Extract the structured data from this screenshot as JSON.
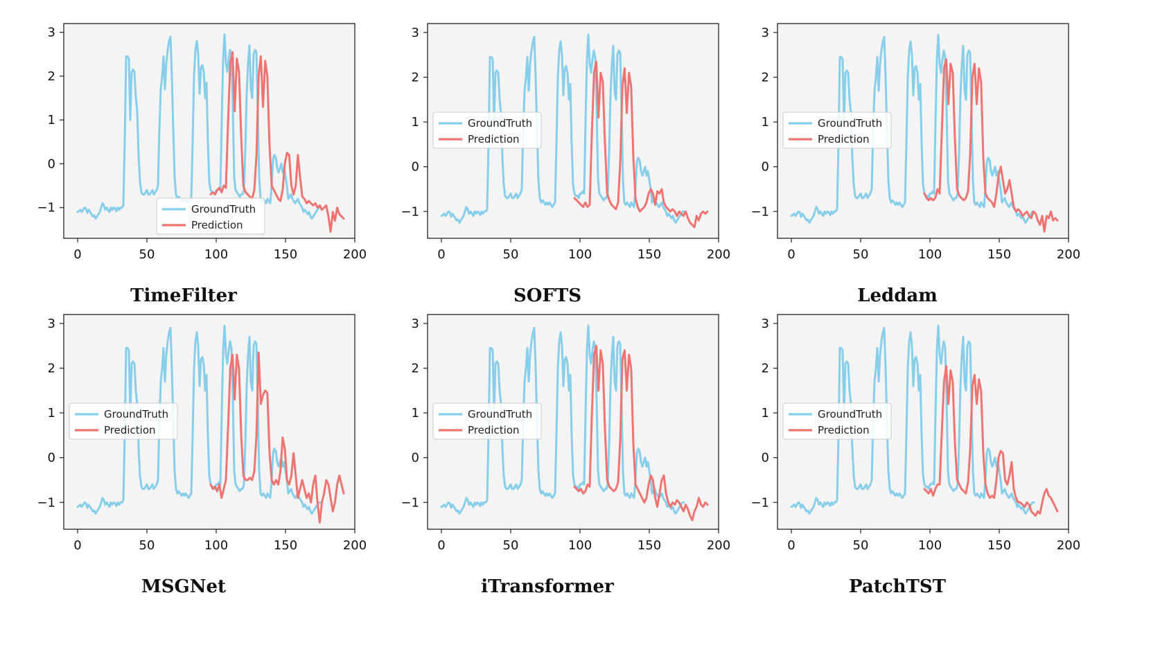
{
  "colors": {
    "ground_truth": "#87ceeb",
    "prediction": "#ee7472",
    "plot_bg": "#f4f4f4"
  },
  "chart_data": [
    {
      "type": "line",
      "title": "TimeFilter",
      "legend_position": "lower-right",
      "xlim": [
        -10,
        200
      ],
      "ylim": [
        -1.7,
        3.2
      ],
      "x_ticks": [
        0,
        50,
        100,
        150,
        200
      ],
      "y_ticks": [
        -1,
        0,
        1,
        2,
        3
      ],
      "series": [
        {
          "name": "GroundTruth",
          "role": "truth"
        },
        {
          "name": "Prediction",
          "role": "pred",
          "start": 96,
          "values": [
            -0.7,
            -0.65,
            -0.7,
            -0.6,
            -0.55,
            -0.65,
            -0.5,
            -0.55,
            1.0,
            2.3,
            2.55,
            1.2,
            2.4,
            2.1,
            0.6,
            -0.5,
            -0.65,
            -0.7,
            -0.75,
            -0.8,
            -0.6,
            0.2,
            2.0,
            2.45,
            1.3,
            2.35,
            2.0,
            0.4,
            -0.5,
            -0.6,
            -0.7,
            -0.8,
            -0.85,
            -0.6,
            0.0,
            0.25,
            0.2,
            -0.5,
            -0.7,
            -0.5,
            0.2,
            -0.3,
            -0.75,
            -0.8,
            -0.9,
            -0.85,
            -0.9,
            -0.95,
            -0.9,
            -1.0,
            -0.95,
            -1.05,
            -1.0,
            -0.95,
            -1.2,
            -1.55,
            -1.1,
            -1.3,
            -1.0,
            -1.15,
            -1.2,
            -1.25
          ]
        }
      ]
    },
    {
      "type": "line",
      "title": "SOFTS",
      "legend_position": "center-left",
      "xlim": [
        -10,
        200
      ],
      "ylim": [
        -1.6,
        3.2
      ],
      "x_ticks": [
        0,
        50,
        100,
        150,
        200
      ],
      "y_ticks": [
        -1,
        0,
        1,
        2,
        3
      ],
      "series": [
        {
          "name": "GroundTruth",
          "role": "truth"
        },
        {
          "name": "Prediction",
          "role": "pred",
          "start": 96,
          "values": [
            -0.7,
            -0.75,
            -0.8,
            -0.85,
            -0.9,
            -0.8,
            -0.9,
            -0.85,
            0.8,
            2.1,
            2.35,
            1.1,
            2.1,
            1.9,
            0.5,
            -0.6,
            -0.75,
            -0.85,
            -0.9,
            -0.95,
            -0.8,
            0.1,
            1.8,
            2.2,
            1.2,
            2.1,
            1.8,
            0.2,
            -0.7,
            -0.9,
            -1.0,
            -0.95,
            -0.9,
            -0.8,
            -0.6,
            -0.5,
            -0.6,
            -0.85,
            -0.55,
            -0.6,
            -0.5,
            -0.8,
            -0.9,
            -0.95,
            -1.0,
            -0.95,
            -1.0,
            -1.1,
            -1.0,
            -1.05,
            -1.1,
            -1.0,
            -1.15,
            -1.25,
            -1.3,
            -1.35,
            -1.1,
            -1.2,
            -1.05,
            -1.0,
            -1.05,
            -1.0
          ]
        }
      ]
    },
    {
      "type": "line",
      "title": "Leddam",
      "legend_position": "center-left",
      "xlim": [
        -10,
        200
      ],
      "ylim": [
        -1.6,
        3.2
      ],
      "x_ticks": [
        0,
        50,
        100,
        150,
        200
      ],
      "y_ticks": [
        -1,
        0,
        1,
        2,
        3
      ],
      "series": [
        {
          "name": "GroundTruth",
          "role": "truth"
        },
        {
          "name": "Prediction",
          "role": "pred",
          "start": 96,
          "values": [
            -0.6,
            -0.7,
            -0.75,
            -0.7,
            -0.75,
            -0.7,
            -0.5,
            -0.6,
            0.8,
            2.2,
            2.4,
            1.4,
            2.3,
            2.1,
            0.6,
            -0.5,
            -0.65,
            -0.7,
            -0.75,
            -0.7,
            -0.55,
            0.3,
            2.0,
            2.3,
            1.4,
            2.2,
            1.9,
            0.2,
            -0.6,
            -0.7,
            -0.75,
            -0.8,
            -0.9,
            -0.6,
            -0.2,
            0.0,
            -0.3,
            -0.6,
            -0.5,
            -0.3,
            -0.6,
            -0.9,
            -1.0,
            -0.95,
            -1.0,
            -1.1,
            -1.05,
            -1.0,
            -1.1,
            -1.15,
            -1.0,
            -1.05,
            -1.2,
            -1.3,
            -1.1,
            -1.45,
            -1.1,
            -1.15,
            -1.0,
            -1.2,
            -1.15,
            -1.2
          ]
        }
      ]
    },
    {
      "type": "line",
      "title": "MSGNet",
      "legend_position": "center-left",
      "xlim": [
        -10,
        200
      ],
      "ylim": [
        -1.6,
        3.2
      ],
      "x_ticks": [
        0,
        50,
        100,
        150,
        200
      ],
      "y_ticks": [
        -1,
        0,
        1,
        2,
        3
      ],
      "series": [
        {
          "name": "GroundTruth",
          "role": "truth"
        },
        {
          "name": "Prediction",
          "role": "pred",
          "start": 96,
          "values": [
            -0.6,
            -0.7,
            -0.65,
            -0.75,
            -0.6,
            -0.9,
            -0.7,
            -0.5,
            0.7,
            2.0,
            2.3,
            1.3,
            2.3,
            2.0,
            0.5,
            -0.4,
            -0.5,
            -0.5,
            -0.45,
            -0.5,
            -0.3,
            0.5,
            2.35,
            1.2,
            1.4,
            1.5,
            1.45,
            0.1,
            -0.5,
            -0.6,
            -0.5,
            -0.6,
            -0.3,
            0.45,
            0.2,
            -0.5,
            -0.6,
            -0.4,
            0.1,
            -0.4,
            -0.9,
            -0.7,
            -0.5,
            -0.7,
            -0.9,
            -0.8,
            -1.0,
            -0.6,
            -0.4,
            -1.0,
            -1.45,
            -1.0,
            -0.8,
            -0.5,
            -0.6,
            -0.9,
            -1.2,
            -1.0,
            -0.6,
            -0.4,
            -0.6,
            -0.8
          ]
        }
      ]
    },
    {
      "type": "line",
      "title": "iTransformer",
      "legend_position": "center-left",
      "xlim": [
        -10,
        200
      ],
      "ylim": [
        -1.6,
        3.2
      ],
      "x_ticks": [
        0,
        50,
        100,
        150,
        200
      ],
      "y_ticks": [
        -1,
        0,
        1,
        2,
        3
      ],
      "series": [
        {
          "name": "GroundTruth",
          "role": "truth"
        },
        {
          "name": "Prediction",
          "role": "pred",
          "start": 96,
          "values": [
            -0.65,
            -0.7,
            -0.75,
            -0.7,
            -0.8,
            -0.75,
            -0.6,
            -0.65,
            1.0,
            2.3,
            2.5,
            1.5,
            2.4,
            2.1,
            0.6,
            -0.5,
            -0.65,
            -0.7,
            -0.75,
            -0.7,
            -0.55,
            0.4,
            2.2,
            2.4,
            1.5,
            2.3,
            2.0,
            0.3,
            -0.6,
            -0.7,
            -0.8,
            -0.9,
            -1.0,
            -0.9,
            -0.6,
            -0.4,
            -0.5,
            -0.9,
            -1.1,
            -0.8,
            -0.5,
            -0.4,
            -0.8,
            -1.0,
            -1.1,
            -1.0,
            -1.05,
            -0.95,
            -1.0,
            -1.1,
            -1.2,
            -1.05,
            -1.15,
            -1.3,
            -1.4,
            -1.2,
            -1.1,
            -0.9,
            -1.05,
            -1.1,
            -1.0,
            -1.05
          ]
        }
      ]
    },
    {
      "type": "line",
      "title": "PatchTST",
      "legend_position": "center-left",
      "xlim": [
        -10,
        200
      ],
      "ylim": [
        -1.6,
        3.2
      ],
      "x_ticks": [
        0,
        50,
        100,
        150,
        200
      ],
      "y_ticks": [
        -1,
        0,
        1,
        2,
        3
      ],
      "series": [
        {
          "name": "GroundTruth",
          "role": "truth"
        },
        {
          "name": "Prediction",
          "role": "pred",
          "start": 96,
          "values": [
            -0.7,
            -0.75,
            -0.8,
            -0.7,
            -0.85,
            -0.7,
            -0.6,
            -0.6,
            0.6,
            1.7,
            2.05,
            1.2,
            1.95,
            1.7,
            0.3,
            -0.5,
            -0.6,
            -0.7,
            -0.75,
            -0.8,
            -0.55,
            0.2,
            1.6,
            1.85,
            1.2,
            1.75,
            1.5,
            0.1,
            -0.6,
            -0.8,
            -0.9,
            -0.85,
            -0.9,
            -0.5,
            0.0,
            0.15,
            0.1,
            -0.5,
            -0.6,
            -0.4,
            -0.1,
            -0.7,
            -0.9,
            -1.0,
            -1.0,
            -1.05,
            -1.1,
            -1.0,
            -1.05,
            -1.2,
            -1.25,
            -1.3,
            -1.2,
            -1.25,
            -1.0,
            -0.8,
            -0.7,
            -0.85,
            -0.9,
            -1.0,
            -1.1,
            -1.2
          ]
        }
      ]
    }
  ],
  "ground_truth_values": [
    -1.1,
    -1.08,
    -1.05,
    -1.1,
    -1.05,
    -1.0,
    -1.02,
    -1.12,
    -1.05,
    -1.1,
    -1.15,
    -1.2,
    -1.18,
    -1.25,
    -1.2,
    -1.15,
    -1.1,
    -1.0,
    -0.9,
    -0.95,
    -1.05,
    -1.0,
    -1.05,
    -1.1,
    -1.0,
    -1.05,
    -1.0,
    -1.02,
    -1.08,
    -1.0,
    -1.05,
    -1.0,
    -1.0,
    -0.95,
    0.5,
    2.45,
    2.45,
    2.4,
    1.0,
    2.1,
    2.15,
    2.1,
    1.5,
    1.2,
    0.2,
    -0.4,
    -0.65,
    -0.7,
    -0.7,
    -0.65,
    -0.6,
    -0.7,
    -0.7,
    -0.65,
    -0.6,
    -0.7,
    -0.65,
    -0.6,
    -0.5,
    0.8,
    1.7,
    2.0,
    2.45,
    1.7,
    2.3,
    2.6,
    2.8,
    2.9,
    2.0,
    0.8,
    -0.3,
    -0.7,
    -0.8,
    -0.75,
    -0.8,
    -0.85,
    -0.8,
    -0.85,
    -0.8,
    -0.85,
    -0.9,
    -0.85,
    -0.8,
    0.5,
    2.0,
    2.6,
    2.8,
    2.5,
    1.6,
    2.2,
    2.25,
    2.1,
    1.5,
    1.85,
    0.5,
    -0.4,
    -0.6,
    -0.65,
    -0.65,
    -0.7,
    -0.6,
    -0.6,
    -0.55,
    -0.6,
    1.0,
    2.4,
    2.95,
    2.3,
    2.1,
    2.4,
    2.6,
    2.45,
    1.3,
    -0.3,
    -0.6,
    -0.65,
    -0.7,
    -0.75,
    -0.7,
    -0.7,
    -0.6,
    0.3,
    1.6,
    2.3,
    2.7,
    1.7,
    1.5,
    2.5,
    2.6,
    2.55,
    1.2,
    -0.3,
    -0.8,
    -0.85,
    -0.8,
    -0.85,
    -0.9,
    -0.8,
    -0.85,
    -0.9,
    -0.5,
    0.1,
    0.2,
    0.15,
    -0.1,
    -0.2,
    -0.1,
    0.0,
    -0.2,
    -0.1,
    -0.3,
    -0.5,
    -0.8,
    -0.75,
    -0.7,
    -0.8,
    -0.85,
    -0.9,
    -0.85,
    -0.8,
    -0.9,
    -0.95,
    -1.0,
    -1.1,
    -1.05,
    -1.1,
    -1.15,
    -1.1,
    -1.2,
    -1.25,
    -1.2,
    -1.15,
    -1.1,
    -1.05,
    -1.0,
    -1.0
  ]
}
